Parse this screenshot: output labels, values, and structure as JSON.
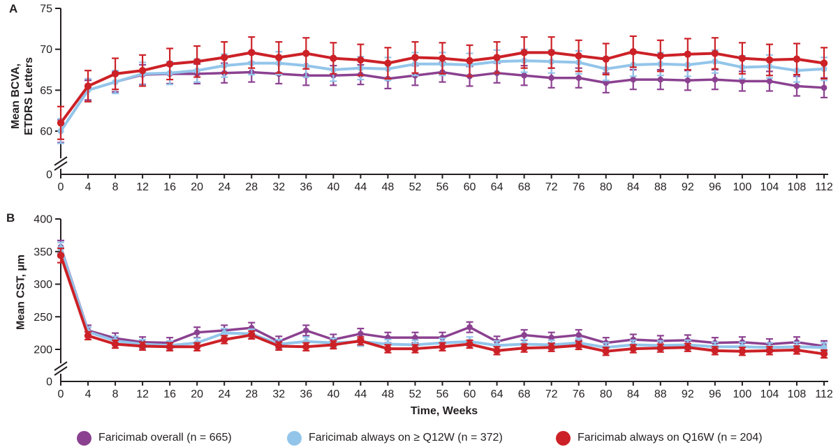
{
  "figure": {
    "panel_a_label": "A",
    "panel_b_label": "B",
    "x_axis_title": "Time, Weeks",
    "text_color": "#231F20",
    "axis_color": "#231F20"
  },
  "legend": [
    {
      "label": "Faricimab overall (n = 665)",
      "color": "#8B4190",
      "icon": "circle"
    },
    {
      "label": "Faricimab always on ≥ Q12W (n = 372)",
      "color": "#93C5EA",
      "icon": "circle"
    },
    {
      "label": "Faricimab always on Q16W (n = 204)",
      "color": "#CC2127",
      "icon": "circle"
    }
  ],
  "chart_data": [
    {
      "type": "line",
      "panel": "A",
      "ylabel_lines": [
        "Mean BCVA,",
        "ETDRS Letters"
      ],
      "xlabel": "Time, Weeks",
      "grid": false,
      "axis_break": true,
      "ylim": [
        60,
        75
      ],
      "yticks": [
        60,
        65,
        70,
        75
      ],
      "y_zero_label": "0",
      "x": [
        0,
        4,
        8,
        12,
        16,
        20,
        24,
        28,
        32,
        36,
        40,
        44,
        48,
        52,
        56,
        60,
        64,
        68,
        72,
        76,
        80,
        84,
        88,
        92,
        96,
        100,
        104,
        108,
        112
      ],
      "series": [
        {
          "name": "Faricimab overall (n = 665)",
          "color": "#8B4190",
          "error": 1.2,
          "error_first": 1.4,
          "values": [
            60.0,
            65.0,
            66.0,
            66.9,
            67.0,
            67.0,
            67.1,
            67.2,
            67.0,
            66.8,
            66.8,
            66.9,
            66.4,
            66.8,
            67.2,
            66.7,
            67.1,
            66.8,
            66.5,
            66.5,
            65.9,
            66.3,
            66.3,
            66.2,
            66.3,
            66.1,
            66.1,
            65.5,
            65.3
          ]
        },
        {
          "name": "Faricimab always on ≥ Q12W (n = 372)",
          "color": "#93C5EA",
          "error": 1.4,
          "error_first": 1.5,
          "values": [
            60.0,
            65.0,
            66.0,
            67.0,
            67.1,
            67.4,
            68.0,
            68.3,
            68.3,
            68.0,
            67.5,
            67.7,
            67.6,
            68.2,
            68.2,
            68.1,
            68.5,
            68.6,
            68.5,
            68.4,
            67.6,
            68.1,
            68.2,
            68.1,
            68.5,
            67.8,
            67.9,
            67.4,
            67.6
          ]
        },
        {
          "name": "Faricimab always on Q16W (n = 204)",
          "color": "#CC2127",
          "error": 1.9,
          "error_first": 2.0,
          "values": [
            61.0,
            65.5,
            67.0,
            67.4,
            68.2,
            68.5,
            69.0,
            69.6,
            69.0,
            69.5,
            68.9,
            68.7,
            68.3,
            69.0,
            68.9,
            68.6,
            69.0,
            69.6,
            69.6,
            69.2,
            68.8,
            69.7,
            69.2,
            69.4,
            69.5,
            68.9,
            68.7,
            68.8,
            68.3
          ]
        }
      ]
    },
    {
      "type": "line",
      "panel": "B",
      "ylabel_lines": [
        "Mean CST, µm"
      ],
      "xlabel": "Time, Weeks",
      "grid": false,
      "axis_break": true,
      "ylim": [
        200,
        400
      ],
      "yticks": [
        200,
        250,
        300,
        350,
        400
      ],
      "y_zero_label": "0",
      "x": [
        0,
        4,
        8,
        12,
        16,
        20,
        24,
        28,
        32,
        36,
        40,
        44,
        48,
        52,
        56,
        60,
        64,
        68,
        72,
        76,
        80,
        84,
        88,
        92,
        96,
        100,
        104,
        108,
        112
      ],
      "series": [
        {
          "name": "Faricimab overall (n = 665)",
          "color": "#8B4190",
          "error": 8,
          "error_first": 10,
          "values": [
            357,
            229,
            217,
            211,
            210,
            226,
            229,
            233,
            212,
            229,
            215,
            224,
            218,
            218,
            218,
            234,
            212,
            222,
            218,
            222,
            210,
            215,
            213,
            214,
            210,
            211,
            208,
            211,
            205
          ]
        },
        {
          "name": "Faricimab always on ≥ Q12W (n = 372)",
          "color": "#93C5EA",
          "error": 7,
          "error_first": 9,
          "values": [
            355,
            227,
            213,
            208,
            206,
            210,
            225,
            224,
            208,
            212,
            210,
            212,
            208,
            207,
            210,
            212,
            206,
            208,
            207,
            210,
            203,
            207,
            206,
            207,
            204,
            204,
            203,
            204,
            203
          ]
        },
        {
          "name": "Faricimab always on Q16W (n = 204)",
          "color": "#CC2127",
          "error": 6,
          "error_first": 11,
          "values": [
            344,
            221,
            208,
            205,
            204,
            204,
            215,
            222,
            205,
            204,
            207,
            213,
            201,
            201,
            204,
            208,
            198,
            202,
            203,
            206,
            197,
            201,
            202,
            203,
            198,
            197,
            198,
            199,
            193
          ]
        }
      ]
    }
  ]
}
